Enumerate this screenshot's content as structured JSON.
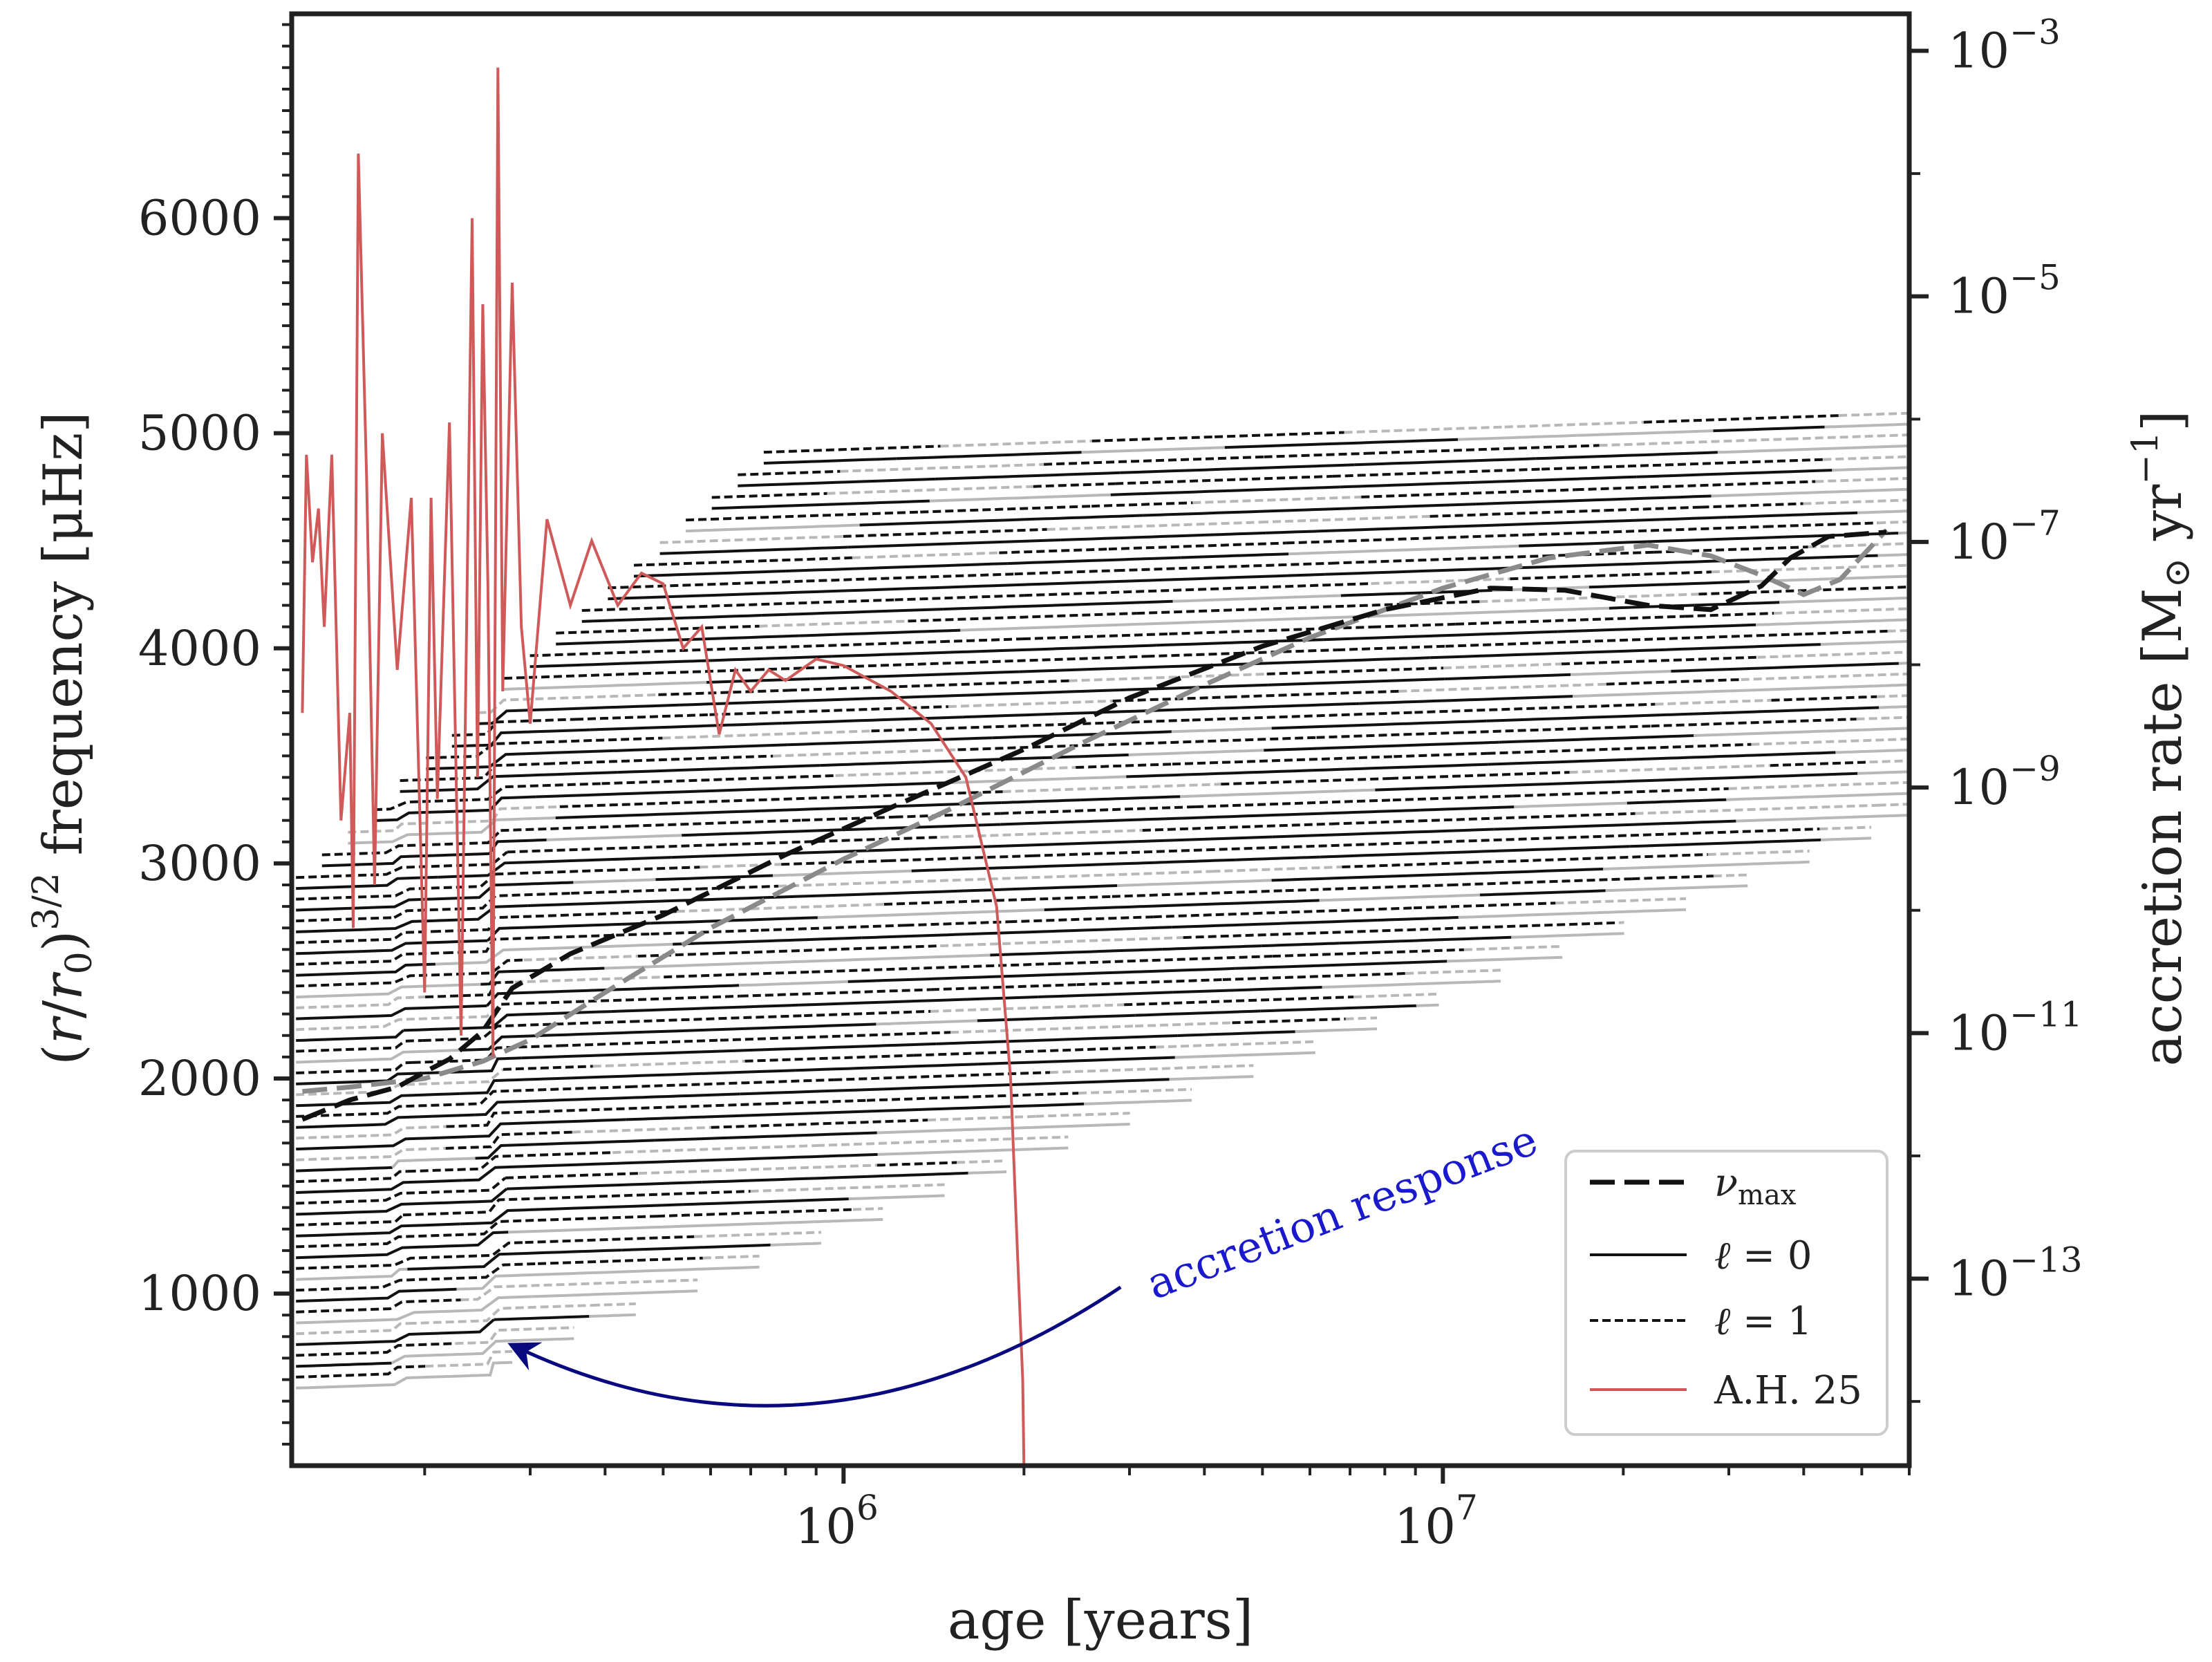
{
  "chart_data": {
    "type": "line",
    "xlabel": "age [years]",
    "ylabel_left": "(r/r₀)³ᐟ² frequency [μHz]",
    "ylabel_left_parts": {
      "paren_open": "(",
      "r": "r",
      "slash": "/",
      "r0": "r",
      "sub0": "0",
      "paren_close": ")",
      "exp": "3/2",
      "rest": " frequency [μHz]"
    },
    "ylabel_right": "accretion rate [M⊙ yr⁻¹]",
    "ylabel_right_parts": {
      "main": "accretion rate [M",
      "sun": "⊙",
      "yr": " yr",
      "exp": "−1",
      "close": "]"
    },
    "xscale": "log",
    "xlim": [
      120000,
      60000000
    ],
    "ylim_left": [
      200,
      6950
    ],
    "yscale_right": "log",
    "ylim_right": [
      3e-15,
      0.002
    ],
    "x_ticks": [
      {
        "value": 1000000,
        "base": "10",
        "exp": "6"
      },
      {
        "value": 10000000,
        "base": "10",
        "exp": "7"
      }
    ],
    "y_ticks_left": [
      {
        "value": 1000,
        "label": "1000"
      },
      {
        "value": 2000,
        "label": "2000"
      },
      {
        "value": 3000,
        "label": "3000"
      },
      {
        "value": 4000,
        "label": "4000"
      },
      {
        "value": 5000,
        "label": "5000"
      },
      {
        "value": 6000,
        "label": "6000"
      }
    ],
    "y_ticks_right": [
      {
        "value": 0.001,
        "base": "10",
        "exp": "−3"
      },
      {
        "value": 1e-05,
        "base": "10",
        "exp": "−5"
      },
      {
        "value": 1e-07,
        "base": "10",
        "exp": "−7"
      },
      {
        "value": 1e-09,
        "base": "10",
        "exp": "−9"
      },
      {
        "value": 1e-11,
        "base": "10",
        "exp": "−11"
      },
      {
        "value": 1e-13,
        "base": "10",
        "exp": "−13"
      }
    ],
    "legend": {
      "placement": "lower-right",
      "items": [
        {
          "key": "numax",
          "symbol": "ν",
          "sub": "max",
          "style": "long-dash",
          "color": "#111111"
        },
        {
          "key": "l0",
          "symbol": "ℓ",
          "eq": " = 0",
          "style": "solid",
          "color": "#111111"
        },
        {
          "key": "l1",
          "symbol": "ℓ",
          "eq": " = 1",
          "style": "dashed",
          "color": "#111111"
        },
        {
          "key": "ah25",
          "label": "A.H. 25",
          "style": "solid",
          "color": "#d05a5a"
        }
      ]
    },
    "annotation": {
      "text": "accretion response",
      "color": "#1a1acc",
      "arrow_color": "#0a0a80",
      "arrow_from": {
        "x": 2900000,
        "y": 1030
      },
      "arrow_to": {
        "x": 280000,
        "y": 760
      }
    },
    "series": {
      "numax_black": {
        "name": "ν_max (black)",
        "color": "#111111",
        "x": [
          125000,
          150000,
          180000,
          200000,
          220000,
          250000,
          280000,
          350000,
          500000,
          800000,
          1200000,
          2000000,
          3000000,
          5000000,
          8000000,
          12000000,
          16000000,
          22000000,
          28000000,
          34000000,
          38000000,
          44000000,
          55000000
        ],
        "y": [
          1810,
          1900,
          1960,
          2030,
          2090,
          2220,
          2420,
          2580,
          2760,
          3040,
          3260,
          3530,
          3770,
          4010,
          4180,
          4280,
          4270,
          4200,
          4180,
          4290,
          4420,
          4520,
          4540
        ]
      },
      "numax_gray": {
        "name": "ν_max (gray)",
        "color": "#8a8a8a",
        "x": [
          125000,
          150000,
          200000,
          250000,
          300000,
          400000,
          600000,
          1000000,
          1500000,
          2500000,
          4000000,
          6000000,
          10000000,
          15000000,
          22000000,
          28000000,
          34000000,
          40000000,
          46000000,
          55000000
        ],
        "y": [
          1940,
          1960,
          2000,
          2080,
          2180,
          2400,
          2700,
          3020,
          3250,
          3560,
          3830,
          4050,
          4280,
          4420,
          4480,
          4430,
          4340,
          4250,
          4320,
          4550
        ]
      },
      "ah25": {
        "name": "A.H. 25",
        "color": "#d05a5a",
        "x": [
          125000,
          127000,
          130000,
          133000,
          136000,
          140000,
          145000,
          150000,
          152000,
          155000,
          160000,
          165000,
          170000,
          180000,
          190000,
          200000,
          205000,
          210000,
          220000,
          230000,
          240000,
          245000,
          250000,
          255000,
          260000,
          265000,
          270000,
          280000,
          290000,
          300000,
          320000,
          350000,
          380000,
          420000,
          460000,
          500000,
          540000,
          580000,
          620000,
          660000,
          700000,
          750000,
          800000,
          900000,
          1000000,
          1200000,
          1400000,
          1600000,
          1800000,
          1900000,
          1950000,
          1990000,
          2000000,
          2000000
        ],
        "y": [
          3700,
          4900,
          4400,
          4650,
          4100,
          4900,
          3200,
          3700,
          2700,
          6300,
          4800,
          2900,
          5000,
          3900,
          4700,
          2400,
          4700,
          3300,
          5050,
          2200,
          6000,
          3400,
          5600,
          4300,
          2100,
          6700,
          3800,
          5700,
          4100,
          3650,
          4600,
          4200,
          4500,
          4200,
          4350,
          4300,
          4000,
          4100,
          3600,
          3900,
          3800,
          3900,
          3850,
          3950,
          3920,
          3800,
          3650,
          3400,
          2800,
          2000,
          1200,
          600,
          200,
          200
        ]
      }
    }
  }
}
